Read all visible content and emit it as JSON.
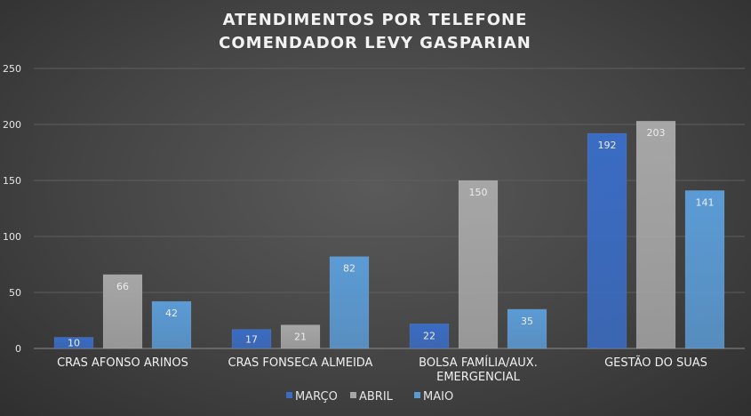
{
  "chart_data": {
    "type": "bar",
    "title": [
      "ATENDIMENTOS POR TELEFONE",
      "COMENDADOR LEVY GASPARIAN"
    ],
    "categories": [
      [
        "CRAS AFONSO ARINOS"
      ],
      [
        "CRAS FONSECA ALMEIDA"
      ],
      [
        "BOLSA FAMÍLIA/AUX.",
        "EMERGENCIAL"
      ],
      [
        "GESTÃO DO SUAS"
      ]
    ],
    "series": [
      {
        "name": "MARÇO",
        "color": "#3a6cc4",
        "values": [
          10,
          17,
          22,
          192
        ]
      },
      {
        "name": "ABRIL",
        "color": "#a6a6a6",
        "values": [
          66,
          21,
          150,
          203
        ]
      },
      {
        "name": "MAIO",
        "color": "#5b9bd5",
        "values": [
          42,
          82,
          35,
          141
        ]
      }
    ],
    "ylim": [
      0,
      250
    ],
    "yticks": [
      0,
      50,
      100,
      150,
      200,
      250
    ],
    "xlabel": "",
    "ylabel": "",
    "grid": true,
    "legend": "bottom-center",
    "data_labels": true
  }
}
